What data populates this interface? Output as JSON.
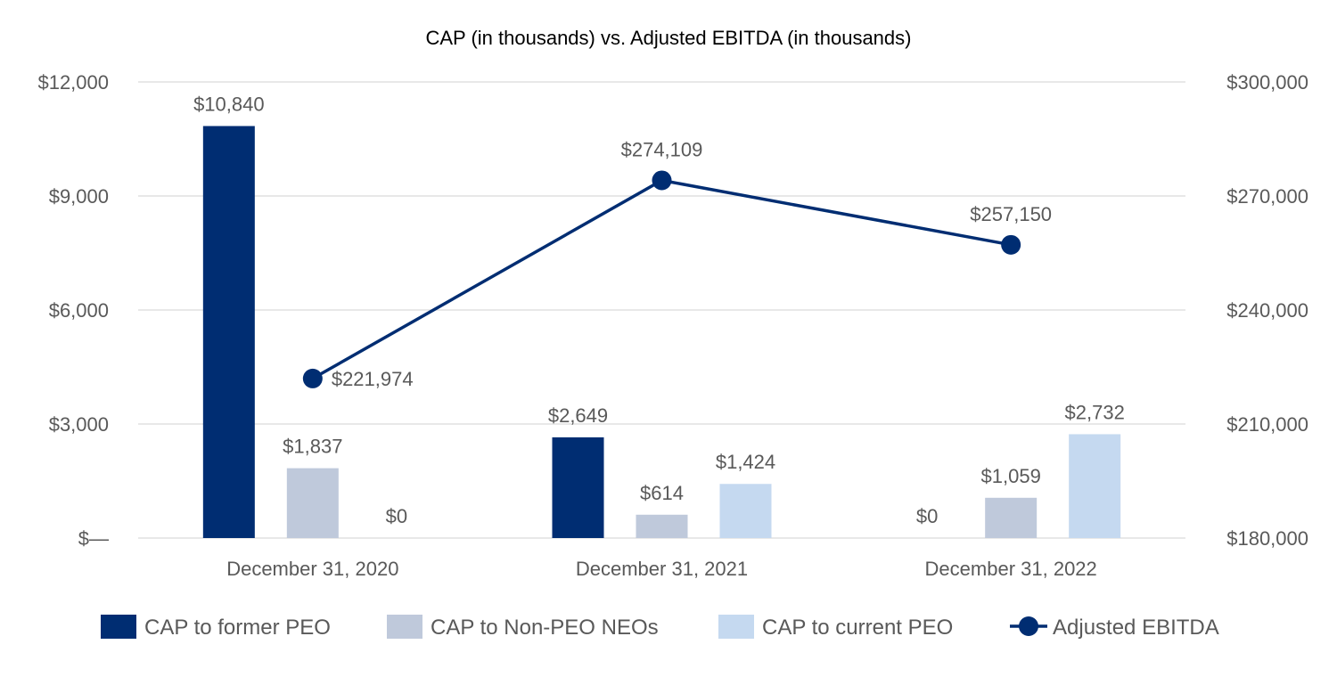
{
  "chart_data": {
    "type": "bar",
    "title": "CAP (in thousands) vs. Adjusted EBITDA (in thousands)",
    "categories": [
      "December 31, 2020",
      "December 31, 2021",
      "December 31, 2022"
    ],
    "series": [
      {
        "name": "CAP to former PEO",
        "type": "bar",
        "axis": "left",
        "color": "#002d72",
        "values": [
          10840,
          2649,
          0
        ],
        "labels": [
          "$10,840",
          "$2,649",
          "$0"
        ]
      },
      {
        "name": "CAP to Non-PEO NEOs",
        "type": "bar",
        "axis": "left",
        "color": "#bfc9db",
        "values": [
          1837,
          614,
          1059
        ],
        "labels": [
          "$1,837",
          "$614",
          "$1,059"
        ]
      },
      {
        "name": "CAP to current PEO",
        "type": "bar",
        "axis": "left",
        "color": "#c5d9f0",
        "values": [
          0,
          1424,
          2732
        ],
        "labels": [
          "$0",
          "$1,424",
          "$2,732"
        ]
      },
      {
        "name": "Adjusted EBITDA",
        "type": "line",
        "axis": "right",
        "color": "#002d72",
        "values": [
          221974,
          274109,
          257150
        ],
        "labels": [
          "$221,974",
          "$274,109",
          "$257,150"
        ]
      }
    ],
    "left_axis": {
      "ylim": [
        0,
        12000
      ],
      "ticks": [
        0,
        3000,
        6000,
        9000,
        12000
      ],
      "tick_labels": [
        "$—",
        "$3,000",
        "$6,000",
        "$9,000",
        "$12,000"
      ]
    },
    "right_axis": {
      "ylim": [
        180000,
        300000
      ],
      "ticks": [
        180000,
        210000,
        240000,
        270000,
        300000
      ],
      "tick_labels": [
        "$180,000",
        "$210,000",
        "$240,000",
        "$270,000",
        "$300,000"
      ]
    },
    "grid": true,
    "legend_position": "bottom"
  }
}
